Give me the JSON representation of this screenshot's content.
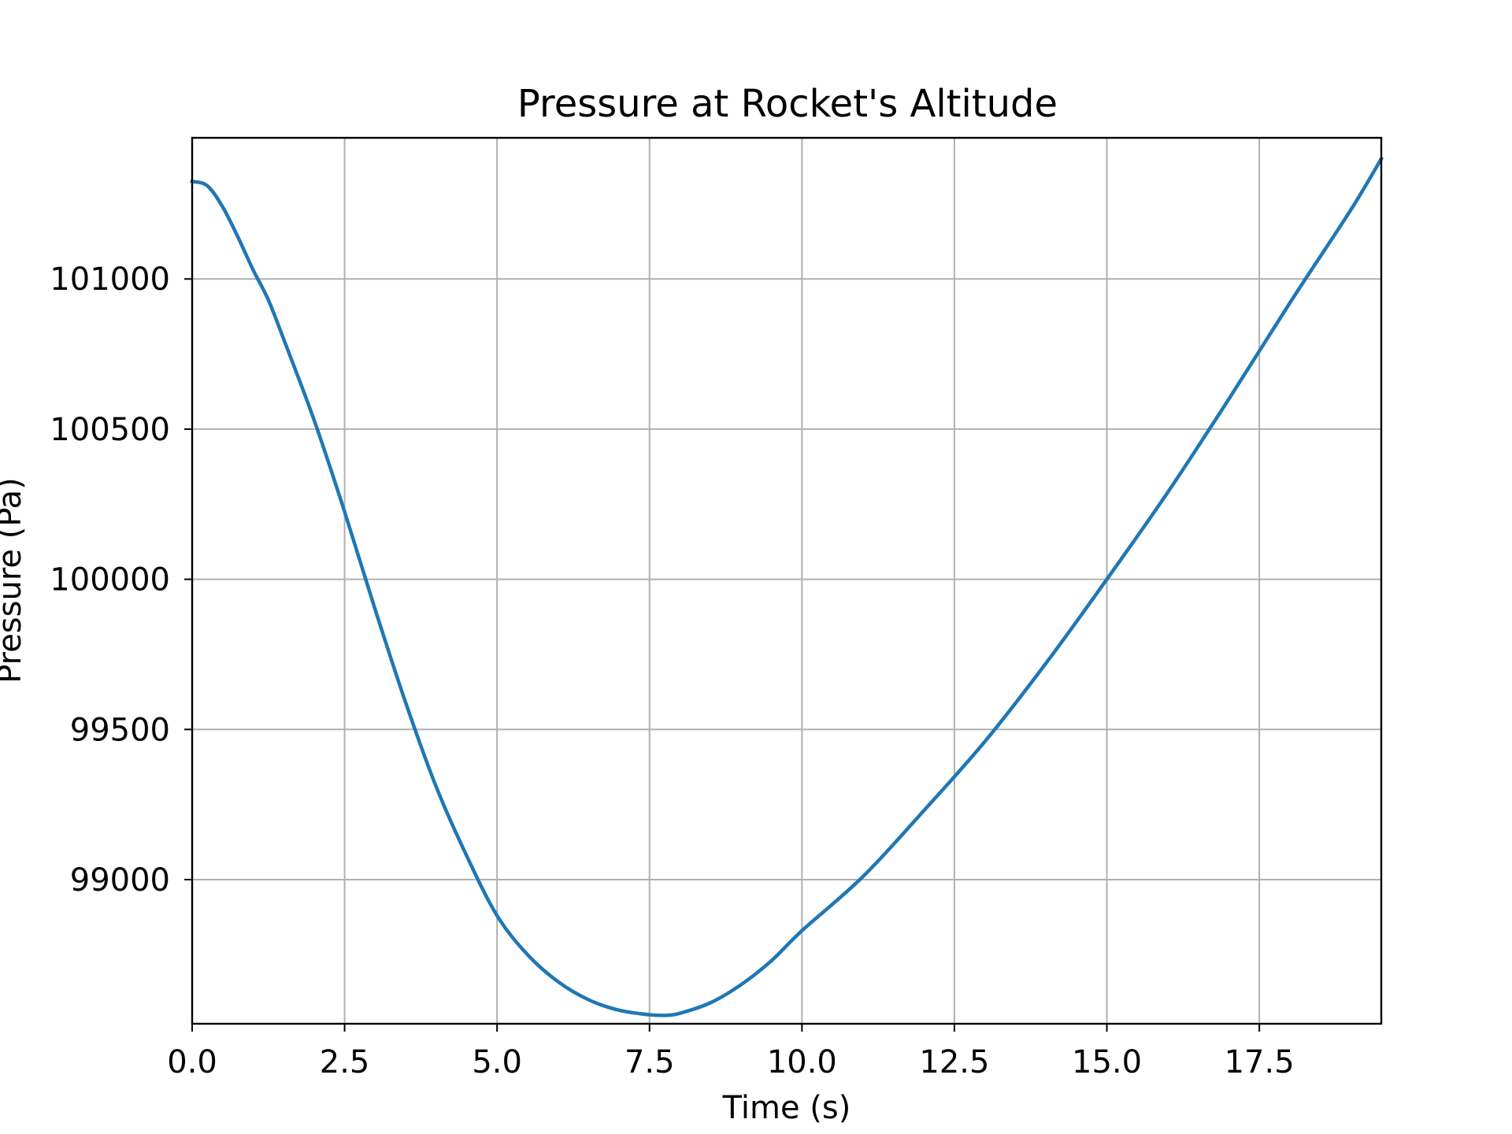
{
  "chart_data": {
    "type": "line",
    "title": "Pressure at Rocket's Altitude",
    "xlabel": "Time (s)",
    "ylabel": "Pressure (Pa)",
    "xlim": [
      0,
      19.5
    ],
    "ylim": [
      98520,
      101470
    ],
    "x_ticks": [
      0.0,
      2.5,
      5.0,
      7.5,
      10.0,
      12.5,
      15.0,
      17.5
    ],
    "x_tick_labels": [
      "0.0",
      "2.5",
      "5.0",
      "7.5",
      "10.0",
      "12.5",
      "15.0",
      "17.5"
    ],
    "y_ticks": [
      99000,
      99500,
      100000,
      100500,
      101000
    ],
    "y_tick_labels": [
      "99000",
      "99500",
      "100000",
      "100500",
      "101000"
    ],
    "grid": true,
    "legend": "none",
    "series": [
      {
        "color": "#1f77b4",
        "x": [
          0.0,
          0.25,
          0.5,
          0.75,
          1.0,
          1.25,
          1.5,
          2.0,
          2.5,
          3.0,
          3.5,
          4.0,
          4.5,
          5.0,
          5.5,
          6.0,
          6.5,
          7.0,
          7.5,
          7.75,
          8.0,
          8.5,
          9.0,
          9.5,
          10.0,
          11.0,
          12.0,
          13.0,
          14.0,
          15.0,
          16.0,
          17.0,
          18.0,
          19.0,
          19.5
        ],
        "y": [
          101325,
          101310,
          101240,
          101140,
          101030,
          100930,
          100800,
          100530,
          100225,
          99900,
          99590,
          99310,
          99080,
          98880,
          98750,
          98660,
          98600,
          98565,
          98550,
          98548,
          98555,
          98590,
          98650,
          98730,
          98830,
          99010,
          99230,
          99460,
          99720,
          100000,
          100290,
          100600,
          100920,
          101230,
          101400
        ]
      }
    ]
  }
}
